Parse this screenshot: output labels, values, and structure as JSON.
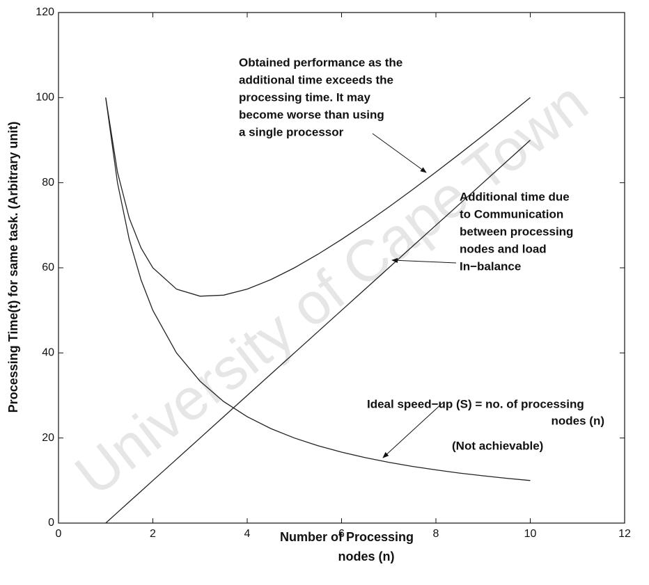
{
  "chart_data": {
    "type": "line",
    "xlabel": [
      "Number of Processing",
      "nodes (n)"
    ],
    "ylabel": "Processing Time(t)  for same task. (Arbitrary unit)",
    "watermark": "University of Cape Town",
    "x": [
      1,
      1.25,
      1.5,
      1.75,
      2,
      2.5,
      3,
      3.5,
      4,
      4.5,
      5,
      5.5,
      6,
      6.5,
      7,
      7.5,
      8,
      8.5,
      9,
      9.5,
      10
    ],
    "series": [
      {
        "color": "#222222",
        "values": [
          100,
          80,
          66.67,
          57.14,
          50,
          40,
          33.33,
          28.57,
          25,
          22.22,
          20,
          18.18,
          16.67,
          15.38,
          14.29,
          13.33,
          12.5,
          11.76,
          11.11,
          10.53,
          10
        ]
      },
      {
        "color": "#222222",
        "values": [
          0,
          2.5,
          5,
          7.5,
          10,
          15,
          20,
          25,
          30,
          35,
          40,
          45,
          50,
          55,
          60,
          65,
          70,
          75,
          80,
          85,
          90
        ]
      },
      {
        "color": "#222222",
        "values": [
          100,
          82.5,
          71.67,
          64.64,
          60,
          55,
          53.33,
          53.57,
          55,
          57.22,
          60,
          63.18,
          66.67,
          70.38,
          74.29,
          78.33,
          82.5,
          86.76,
          91.11,
          95.53,
          100
        ]
      }
    ],
    "annotations": [
      {
        "lines": [
          "Obtained performance as the",
          "additional time exceeds the",
          "processing time. It may",
          "become worse than using",
          "a single processor"
        ]
      },
      {
        "lines": [
          "Additional time due",
          "to Communication",
          "between processing",
          "nodes and  load",
          "In−balance"
        ]
      },
      {
        "lines": [
          "Ideal speed−up (S) = no. of processing",
          "nodes (n)",
          "(Not achievable)"
        ]
      }
    ],
    "xlim": [
      0,
      12
    ],
    "xticks": [
      0,
      2,
      4,
      6,
      8,
      10,
      12
    ],
    "ylim": [
      0,
      120
    ],
    "yticks": [
      0,
      20,
      40,
      60,
      80,
      100,
      120
    ],
    "grid": false
  }
}
